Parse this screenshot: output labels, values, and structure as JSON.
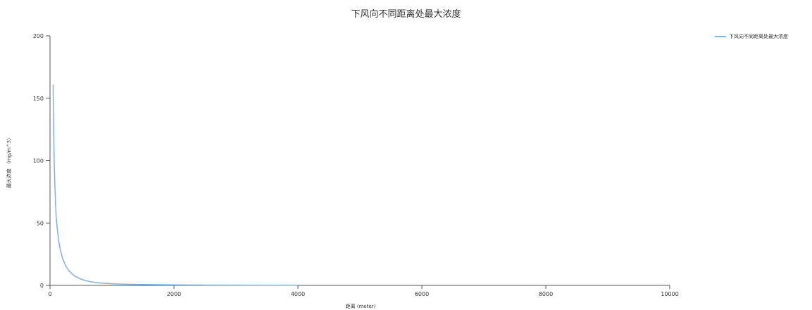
{
  "chart_data": {
    "type": "line",
    "title": "下风向不同距离处最大浓度",
    "xlabel": "距离 (meter)",
    "ylabel": "最大浓度 （mg/m^3）",
    "xlim": [
      0,
      10000
    ],
    "ylim": [
      0,
      200
    ],
    "x_ticks": [
      0,
      2000,
      4000,
      6000,
      8000,
      10000
    ],
    "y_ticks": [
      0,
      50,
      100,
      150,
      200
    ],
    "grid": false,
    "legend_position": "top-right",
    "series": [
      {
        "name": "下风向不同距离处最大浓度",
        "color": "#7eb2e6",
        "x": [
          50,
          60,
          70,
          80,
          90,
          100,
          120,
          140,
          160,
          180,
          200,
          250,
          300,
          350,
          400,
          500,
          600,
          700,
          800,
          1000,
          1200,
          1500,
          2000,
          2500,
          3000,
          3500,
          4000
        ],
        "y": [
          161,
          120,
          95,
          78,
          65,
          55,
          44,
          36,
          30,
          26,
          22,
          16,
          12,
          9.5,
          7.5,
          5,
          3.5,
          2.6,
          2,
          1.3,
          1,
          0.7,
          0.45,
          0.3,
          0.22,
          0.17,
          0.14
        ]
      }
    ]
  }
}
